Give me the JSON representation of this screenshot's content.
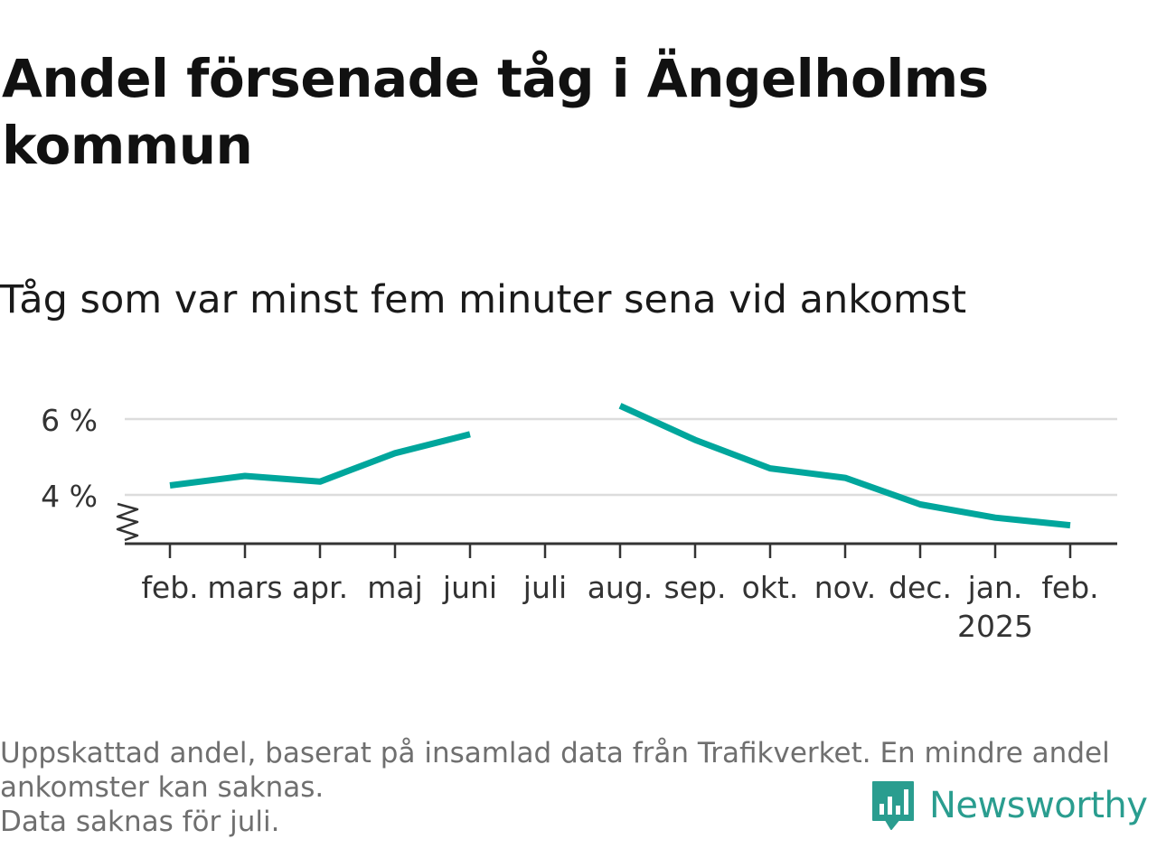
{
  "title": "Andel försenade tåg i Ängelholms kommun",
  "subtitle": "Tåg som var minst fem minuter sena vid ankomst",
  "footnote": {
    "line1": "Uppskattad andel, baserat på insamlad data från Trafikverket. En mindre andel",
    "line2": "ankomster kan saknas.",
    "line3": "Data saknas för juli."
  },
  "brand": {
    "name": "Newsworthy",
    "color": "#2a9d8f",
    "icon": "chart-bubble-icon"
  },
  "chart_data": {
    "type": "line",
    "title": "Andel försenade tåg i Ängelholms kommun",
    "subtitle": "Tåg som var minst fem minuter sena vid ankomst",
    "xlabel": "",
    "ylabel": "",
    "categories": [
      "feb.",
      "mars",
      "apr.",
      "maj",
      "juni",
      "juli",
      "aug.",
      "sep.",
      "okt.",
      "nov.",
      "dec.",
      "jan.",
      "feb."
    ],
    "year_label": {
      "text": "2025",
      "under_category_index": 11
    },
    "series": [
      {
        "color": "#00a69c",
        "values": [
          4.25,
          4.5,
          4.35,
          5.1,
          5.6,
          null,
          6.35,
          5.45,
          4.7,
          4.45,
          3.75,
          3.4,
          3.2
        ]
      }
    ],
    "y_ticks": [
      4,
      6
    ],
    "y_tick_labels": [
      "4 %",
      "6 %"
    ],
    "ylim": [
      2.7,
      6.6
    ],
    "y_axis_break": true,
    "grid": true
  }
}
